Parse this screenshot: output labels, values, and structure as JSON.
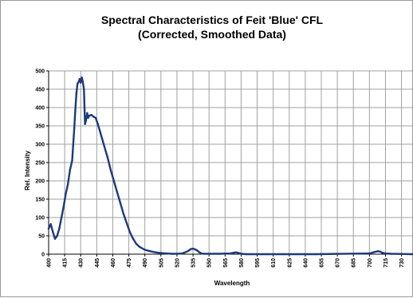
{
  "chart_data": {
    "type": "line",
    "title": "Spectral Characteristics of Feit 'Blue' CFL",
    "subtitle": "(Corrected, Smoothed Data)",
    "xlabel": "Wavelength",
    "ylabel": "Rel. Intensity",
    "xlim": [
      400,
      740
    ],
    "ylim": [
      0,
      500
    ],
    "grid": true,
    "legend": "none",
    "line_color": "#1f3a7a",
    "y_ticks": [
      "0",
      "50",
      "100",
      "150",
      "200",
      "250",
      "300",
      "350",
      "400",
      "450",
      "500"
    ],
    "x_ticks": [
      "400",
      "415",
      "430",
      "445",
      "460",
      "475",
      "490",
      "505",
      "520",
      "535",
      "550",
      "565",
      "580",
      "595",
      "610",
      "625",
      "640",
      "655",
      "670",
      "685",
      "700",
      "715",
      "730"
    ],
    "series": [
      {
        "x": [
          400,
          402,
          404,
          406,
          408,
          410,
          412,
          414,
          416,
          418,
          420,
          422,
          424,
          425,
          426,
          427,
          428,
          429,
          430,
          431,
          432,
          433,
          434,
          435,
          436,
          437,
          438,
          440,
          442,
          444,
          446,
          448,
          450,
          452,
          455,
          458,
          461,
          464,
          467,
          470,
          473,
          476,
          479,
          482,
          485,
          490,
          495,
          500,
          505,
          510,
          515,
          520,
          525,
          530,
          533,
          535,
          537,
          539,
          541,
          543,
          545,
          550,
          560,
          570,
          575,
          578,
          580,
          585,
          600,
          650,
          700,
          705,
          708,
          710,
          712,
          715,
          720,
          740
        ],
        "y": [
          70,
          82,
          60,
          42,
          50,
          70,
          100,
          130,
          165,
          190,
          230,
          255,
          345,
          395,
          440,
          465,
          470,
          478,
          468,
          482,
          470,
          450,
          355,
          365,
          385,
          372,
          378,
          380,
          375,
          372,
          355,
          335,
          315,
          295,
          265,
          230,
          200,
          170,
          140,
          110,
          85,
          60,
          42,
          28,
          20,
          12,
          8,
          5,
          3,
          2,
          1,
          1,
          2,
          8,
          14,
          15,
          13,
          10,
          5,
          2,
          1,
          1,
          1,
          2,
          5,
          3,
          1,
          0,
          0,
          0,
          2,
          6,
          8,
          7,
          4,
          2,
          1,
          0
        ]
      }
    ]
  }
}
